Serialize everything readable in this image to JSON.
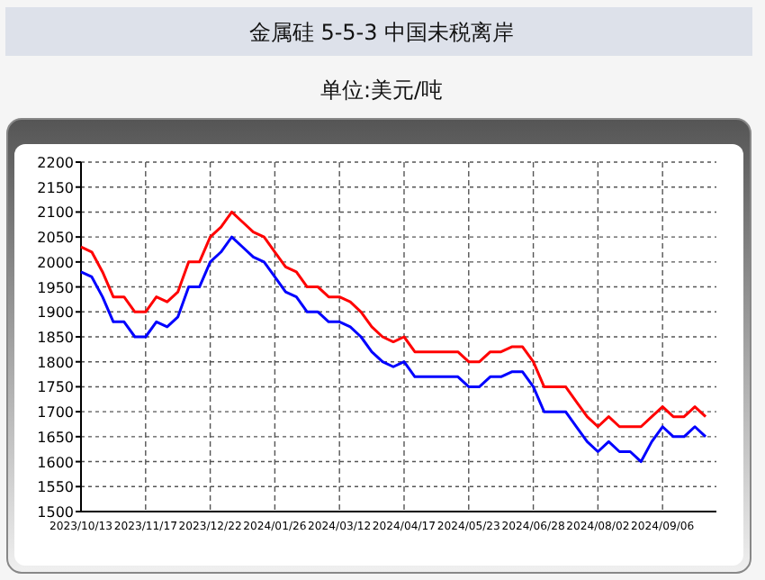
{
  "chart_data": {
    "type": "line",
    "title": "金属硅 5-5-3 中国未税离岸",
    "subtitle": "单位:美元/吨",
    "categories": [
      "2023/10/13",
      null,
      null,
      null,
      null,
      null,
      "2023/11/17",
      null,
      null,
      null,
      null,
      null,
      "2023/12/22",
      null,
      null,
      null,
      null,
      null,
      "2024/01/26",
      null,
      null,
      null,
      null,
      null,
      "2024/03/12",
      null,
      null,
      null,
      null,
      null,
      "2024/04/17",
      null,
      null,
      null,
      null,
      null,
      "2024/05/23",
      null,
      null,
      null,
      null,
      null,
      "2024/06/28",
      null,
      null,
      null,
      null,
      null,
      "2024/08/02",
      null,
      null,
      null,
      null,
      null,
      "2024/09/06",
      null,
      null,
      null,
      null
    ],
    "series": [
      {
        "color": "#ff0000",
        "values": [
          2030,
          2020,
          1980,
          1930,
          1930,
          1900,
          1900,
          1930,
          1920,
          1940,
          2000,
          2000,
          2050,
          2070,
          2100,
          2080,
          2060,
          2050,
          2020,
          1990,
          1980,
          1950,
          1950,
          1930,
          1930,
          1920,
          1900,
          1870,
          1850,
          1840,
          1850,
          1820,
          1820,
          1820,
          1820,
          1820,
          1800,
          1800,
          1820,
          1820,
          1830,
          1830,
          1800,
          1750,
          1750,
          1750,
          1720,
          1690,
          1670,
          1690,
          1670,
          1670,
          1670,
          1690,
          1710,
          1690,
          1690,
          1710,
          1690
        ]
      },
      {
        "color": "#0000ff",
        "values": [
          1980,
          1970,
          1930,
          1880,
          1880,
          1850,
          1850,
          1880,
          1870,
          1890,
          1950,
          1950,
          2000,
          2020,
          2050,
          2030,
          2010,
          2000,
          1970,
          1940,
          1930,
          1900,
          1900,
          1880,
          1880,
          1870,
          1850,
          1820,
          1800,
          1790,
          1800,
          1770,
          1770,
          1770,
          1770,
          1770,
          1750,
          1750,
          1770,
          1770,
          1780,
          1780,
          1750,
          1700,
          1700,
          1700,
          1670,
          1640,
          1620,
          1640,
          1620,
          1620,
          1600,
          1640,
          1670,
          1650,
          1650,
          1670,
          1650
        ]
      }
    ],
    "ylim": [
      1500,
      2200
    ],
    "yticks": [
      1500,
      1550,
      1600,
      1650,
      1700,
      1750,
      1800,
      1850,
      1900,
      1950,
      2000,
      2050,
      2100,
      2150,
      2200
    ],
    "grid": true
  }
}
